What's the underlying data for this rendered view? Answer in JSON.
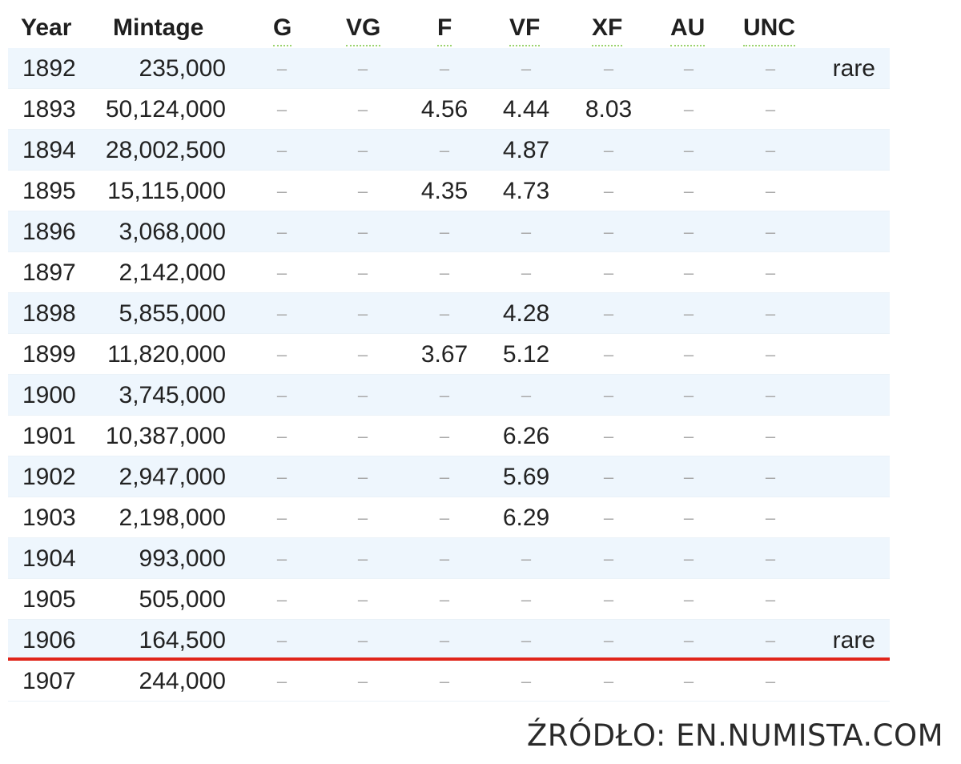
{
  "headers": {
    "year": "Year",
    "mintage": "Mintage",
    "g": "G",
    "vg": "VG",
    "f": "F",
    "vf": "VF",
    "xf": "XF",
    "au": "AU",
    "unc": "UNC"
  },
  "rows": [
    {
      "year": "1892",
      "mintage": "235,000",
      "g": "–",
      "vg": "–",
      "f": "–",
      "vf": "–",
      "xf": "–",
      "au": "–",
      "unc": "–",
      "note": "rare"
    },
    {
      "year": "1893",
      "mintage": "50,124,000",
      "g": "–",
      "vg": "–",
      "f": "4.56",
      "vf": "4.44",
      "xf": "8.03",
      "au": "–",
      "unc": "–",
      "note": ""
    },
    {
      "year": "1894",
      "mintage": "28,002,500",
      "g": "–",
      "vg": "–",
      "f": "–",
      "vf": "4.87",
      "xf": "–",
      "au": "–",
      "unc": "–",
      "note": ""
    },
    {
      "year": "1895",
      "mintage": "15,115,000",
      "g": "–",
      "vg": "–",
      "f": "4.35",
      "vf": "4.73",
      "xf": "–",
      "au": "–",
      "unc": "–",
      "note": ""
    },
    {
      "year": "1896",
      "mintage": "3,068,000",
      "g": "–",
      "vg": "–",
      "f": "–",
      "vf": "–",
      "xf": "–",
      "au": "–",
      "unc": "–",
      "note": ""
    },
    {
      "year": "1897",
      "mintage": "2,142,000",
      "g": "–",
      "vg": "–",
      "f": "–",
      "vf": "–",
      "xf": "–",
      "au": "–",
      "unc": "–",
      "note": ""
    },
    {
      "year": "1898",
      "mintage": "5,855,000",
      "g": "–",
      "vg": "–",
      "f": "–",
      "vf": "4.28",
      "xf": "–",
      "au": "–",
      "unc": "–",
      "note": ""
    },
    {
      "year": "1899",
      "mintage": "11,820,000",
      "g": "–",
      "vg": "–",
      "f": "3.67",
      "vf": "5.12",
      "xf": "–",
      "au": "–",
      "unc": "–",
      "note": ""
    },
    {
      "year": "1900",
      "mintage": "3,745,000",
      "g": "–",
      "vg": "–",
      "f": "–",
      "vf": "–",
      "xf": "–",
      "au": "–",
      "unc": "–",
      "note": ""
    },
    {
      "year": "1901",
      "mintage": "10,387,000",
      "g": "–",
      "vg": "–",
      "f": "–",
      "vf": "6.26",
      "xf": "–",
      "au": "–",
      "unc": "–",
      "note": ""
    },
    {
      "year": "1902",
      "mintage": "2,947,000",
      "g": "–",
      "vg": "–",
      "f": "–",
      "vf": "5.69",
      "xf": "–",
      "au": "–",
      "unc": "–",
      "note": ""
    },
    {
      "year": "1903",
      "mintage": "2,198,000",
      "g": "–",
      "vg": "–",
      "f": "–",
      "vf": "6.29",
      "xf": "–",
      "au": "–",
      "unc": "–",
      "note": ""
    },
    {
      "year": "1904",
      "mintage": "993,000",
      "g": "–",
      "vg": "–",
      "f": "–",
      "vf": "–",
      "xf": "–",
      "au": "–",
      "unc": "–",
      "note": ""
    },
    {
      "year": "1905",
      "mintage": "505,000",
      "g": "–",
      "vg": "–",
      "f": "–",
      "vf": "–",
      "xf": "–",
      "au": "–",
      "unc": "–",
      "note": ""
    },
    {
      "year": "1906",
      "mintage": "164,500",
      "g": "–",
      "vg": "–",
      "f": "–",
      "vf": "–",
      "xf": "–",
      "au": "–",
      "unc": "–",
      "note": "rare"
    },
    {
      "year": "1907",
      "mintage": "244,000",
      "g": "–",
      "vg": "–",
      "f": "–",
      "vf": "–",
      "xf": "–",
      "au": "–",
      "unc": "–",
      "note": ""
    }
  ],
  "source": "ŹRÓDŁO: EN.NUMISTA.COM",
  "colors": {
    "row_shade": "#eef6fd",
    "marker_line": "#e0251b",
    "header_underline": "#9bd36f",
    "dash": "#a9a9a9"
  }
}
